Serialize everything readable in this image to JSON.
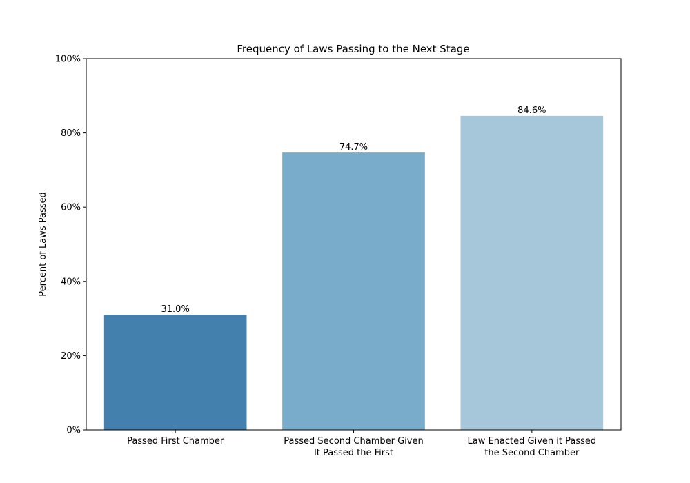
{
  "chart_data": {
    "type": "bar",
    "title": "Frequency of Laws Passing to the Next Stage",
    "xlabel": "",
    "ylabel": "Percent of Laws Passed",
    "ylim": [
      0,
      100
    ],
    "y_ticks": [
      0,
      20,
      40,
      60,
      80,
      100
    ],
    "y_tick_labels": [
      "0%",
      "20%",
      "40%",
      "60%",
      "80%",
      "100%"
    ],
    "categories": [
      [
        "Passed First Chamber"
      ],
      [
        "Passed Second Chamber Given",
        "It Passed the First"
      ],
      [
        "Law Enacted Given it Passed",
        "the Second Chamber"
      ]
    ],
    "values": [
      31.0,
      74.7,
      84.6
    ],
    "value_labels": [
      "31.0%",
      "74.7%",
      "84.6%"
    ],
    "colors": [
      "#4380ad",
      "#79abcb",
      "#a6c7da"
    ],
    "grid": false,
    "legend": false
  }
}
